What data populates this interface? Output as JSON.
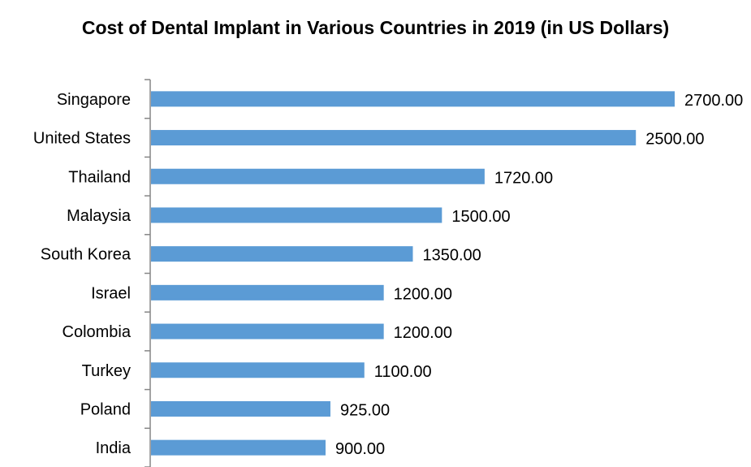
{
  "chart_data": {
    "type": "bar",
    "orientation": "horizontal",
    "title": "Cost of  Dental Implant in Various Countries in 2019 (in US Dollars)",
    "xlabel": "",
    "ylabel": "",
    "categories": [
      "Singapore",
      "United States",
      "Thailand",
      "Malaysia",
      "South Korea",
      "Israel",
      "Colombia",
      "Turkey",
      "Poland",
      "India"
    ],
    "values": [
      2700,
      2500,
      1720,
      1500,
      1350,
      1200,
      1200,
      1100,
      925,
      900
    ],
    "value_labels": [
      "2700.00",
      "2500.00",
      "1720.00",
      "1500.00",
      "1350.00",
      "1200.00",
      "1200.00",
      "1100.00",
      "925.00",
      "900.00"
    ],
    "xlim": [
      0,
      2700
    ],
    "grid": false,
    "legend": "none",
    "bar_color": "#5B9BD5"
  }
}
